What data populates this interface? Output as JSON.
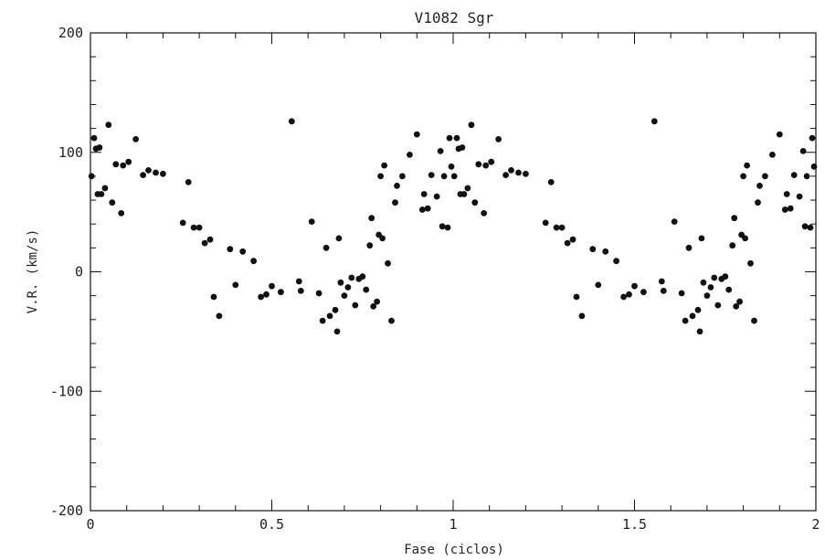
{
  "chart_data": {
    "type": "scatter",
    "title": "V1082 Sgr",
    "xlabel": "Fase (ciclos)",
    "ylabel": "V.R. (km/s)",
    "xlim": [
      0,
      2
    ],
    "ylim": [
      -200,
      200
    ],
    "x_ticks": [
      0,
      0.5,
      1,
      1.5,
      2
    ],
    "x_tick_labels": [
      "0",
      "0.5",
      "1",
      "1.5",
      "2"
    ],
    "y_ticks": [
      -200,
      -100,
      0,
      100,
      200
    ],
    "y_tick_labels": [
      "-200",
      "-100",
      "0",
      "100",
      "200"
    ],
    "grid": false,
    "marker_color": "#111111",
    "series": [
      {
        "points": [
          [
            0.003,
            80
          ],
          [
            0.01,
            112
          ],
          [
            0.015,
            103
          ],
          [
            0.02,
            65
          ],
          [
            0.025,
            104
          ],
          [
            0.03,
            65
          ],
          [
            0.04,
            70
          ],
          [
            0.05,
            123
          ],
          [
            0.06,
            58
          ],
          [
            0.07,
            90
          ],
          [
            0.085,
            49
          ],
          [
            0.09,
            89
          ],
          [
            0.105,
            92
          ],
          [
            0.125,
            111
          ],
          [
            0.145,
            81
          ],
          [
            0.16,
            85
          ],
          [
            0.18,
            83
          ],
          [
            0.2,
            82
          ],
          [
            0.255,
            41
          ],
          [
            0.27,
            75
          ],
          [
            0.285,
            37
          ],
          [
            0.3,
            37
          ],
          [
            0.315,
            24
          ],
          [
            0.33,
            27
          ],
          [
            0.34,
            -21
          ],
          [
            0.355,
            -37
          ],
          [
            0.385,
            19
          ],
          [
            0.4,
            -11
          ],
          [
            0.42,
            17
          ],
          [
            0.45,
            9
          ],
          [
            0.47,
            -21
          ],
          [
            0.485,
            -19
          ],
          [
            0.5,
            -12
          ],
          [
            0.525,
            -17
          ],
          [
            0.555,
            126
          ],
          [
            0.575,
            -8
          ],
          [
            0.58,
            -16
          ],
          [
            0.61,
            42
          ],
          [
            0.63,
            -18
          ],
          [
            0.64,
            -41
          ],
          [
            0.65,
            20
          ],
          [
            0.66,
            -37
          ],
          [
            0.675,
            -32
          ],
          [
            0.68,
            -50
          ],
          [
            0.685,
            28
          ],
          [
            0.69,
            -9
          ],
          [
            0.7,
            -20
          ],
          [
            0.71,
            -13
          ],
          [
            0.72,
            -5
          ],
          [
            0.73,
            -28
          ],
          [
            0.74,
            -6
          ],
          [
            0.75,
            -4
          ],
          [
            0.76,
            -15
          ],
          [
            0.77,
            22
          ],
          [
            0.775,
            45
          ],
          [
            0.78,
            -29
          ],
          [
            0.79,
            -25
          ],
          [
            0.795,
            31
          ],
          [
            0.8,
            80
          ],
          [
            0.805,
            28
          ],
          [
            0.81,
            89
          ],
          [
            0.82,
            7
          ],
          [
            0.83,
            -41
          ],
          [
            0.84,
            58
          ],
          [
            0.845,
            72
          ],
          [
            0.86,
            80
          ],
          [
            0.88,
            98
          ],
          [
            0.9,
            115
          ],
          [
            0.915,
            52
          ],
          [
            0.92,
            65
          ],
          [
            0.93,
            53
          ],
          [
            0.94,
            81
          ],
          [
            0.955,
            63
          ],
          [
            0.965,
            101
          ],
          [
            0.97,
            38
          ],
          [
            0.975,
            80
          ],
          [
            0.985,
            37
          ],
          [
            0.99,
            112
          ],
          [
            0.995,
            88
          ],
          [
            1.003,
            80
          ],
          [
            1.01,
            112
          ],
          [
            1.015,
            103
          ],
          [
            1.02,
            65
          ],
          [
            1.025,
            104
          ],
          [
            1.03,
            65
          ],
          [
            1.04,
            70
          ],
          [
            1.05,
            123
          ],
          [
            1.06,
            58
          ],
          [
            1.07,
            90
          ],
          [
            1.085,
            49
          ],
          [
            1.09,
            89
          ],
          [
            1.105,
            92
          ],
          [
            1.125,
            111
          ],
          [
            1.145,
            81
          ],
          [
            1.16,
            85
          ],
          [
            1.18,
            83
          ],
          [
            1.2,
            82
          ],
          [
            1.255,
            41
          ],
          [
            1.27,
            75
          ],
          [
            1.285,
            37
          ],
          [
            1.3,
            37
          ],
          [
            1.315,
            24
          ],
          [
            1.33,
            27
          ],
          [
            1.34,
            -21
          ],
          [
            1.355,
            -37
          ],
          [
            1.385,
            19
          ],
          [
            1.4,
            -11
          ],
          [
            1.42,
            17
          ],
          [
            1.45,
            9
          ],
          [
            1.47,
            -21
          ],
          [
            1.485,
            -19
          ],
          [
            1.5,
            -12
          ],
          [
            1.525,
            -17
          ],
          [
            1.555,
            126
          ],
          [
            1.575,
            -8
          ],
          [
            1.58,
            -16
          ],
          [
            1.61,
            42
          ],
          [
            1.63,
            -18
          ],
          [
            1.64,
            -41
          ],
          [
            1.65,
            20
          ],
          [
            1.66,
            -37
          ],
          [
            1.675,
            -32
          ],
          [
            1.68,
            -50
          ],
          [
            1.685,
            28
          ],
          [
            1.69,
            -9
          ],
          [
            1.7,
            -20
          ],
          [
            1.71,
            -13
          ],
          [
            1.72,
            -5
          ],
          [
            1.73,
            -28
          ],
          [
            1.74,
            -6
          ],
          [
            1.75,
            -4
          ],
          [
            1.76,
            -15
          ],
          [
            1.77,
            22
          ],
          [
            1.775,
            45
          ],
          [
            1.78,
            -29
          ],
          [
            1.79,
            -25
          ],
          [
            1.795,
            31
          ],
          [
            1.8,
            80
          ],
          [
            1.805,
            28
          ],
          [
            1.81,
            89
          ],
          [
            1.82,
            7
          ],
          [
            1.83,
            -41
          ],
          [
            1.84,
            58
          ],
          [
            1.845,
            72
          ],
          [
            1.86,
            80
          ],
          [
            1.88,
            98
          ],
          [
            1.9,
            115
          ],
          [
            1.915,
            52
          ],
          [
            1.92,
            65
          ],
          [
            1.93,
            53
          ],
          [
            1.94,
            81
          ],
          [
            1.955,
            63
          ],
          [
            1.965,
            101
          ],
          [
            1.97,
            38
          ],
          [
            1.975,
            80
          ],
          [
            1.985,
            37
          ],
          [
            1.99,
            112
          ],
          [
            1.995,
            88
          ]
        ]
      }
    ]
  }
}
